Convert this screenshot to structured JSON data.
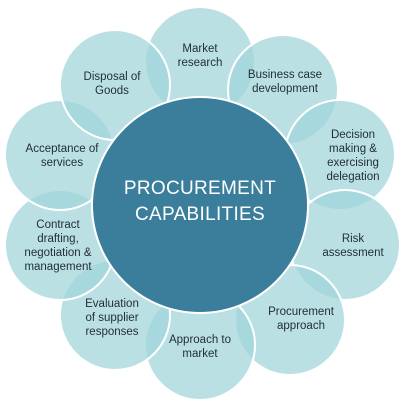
{
  "center": {
    "label": "PROCUREMENT\nCAPABILITIES"
  },
  "items": [
    {
      "label": "Market\nresearch"
    },
    {
      "label": "Business case\ndevelopment"
    },
    {
      "label": "Decision\nmaking &\nexercising\ndelegation"
    },
    {
      "label": "Risk\nassessment"
    },
    {
      "label": "Procurement\napproach"
    },
    {
      "label": "Approach to\nmarket"
    },
    {
      "label": "Evaluation\nof supplier\nresponses"
    },
    {
      "label": "Contract\ndrafting,\nnegotiation &\nmanagement"
    },
    {
      "label": "Acceptance of\nservices"
    },
    {
      "label": "Disposal of\nGoods"
    }
  ],
  "colors": {
    "petal": "#a0d4da",
    "core": "#3b7e9b",
    "label_text": "#1f2d33",
    "center_text": "#ffffff"
  }
}
